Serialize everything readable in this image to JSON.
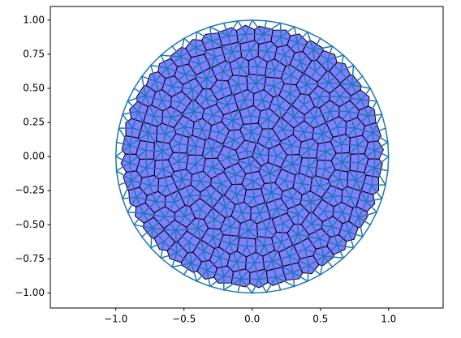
{
  "chart_data": {
    "type": "voronoi-delaunay",
    "xlim": [
      -1.48,
      1.4
    ],
    "ylim": [
      -1.11,
      1.1
    ],
    "xticks": [
      {
        "value": -1,
        "label": "−1.0"
      },
      {
        "value": -0.5,
        "label": "−0.5"
      },
      {
        "value": 0,
        "label": "0.0"
      },
      {
        "value": 0.5,
        "label": "0.5"
      },
      {
        "value": 1,
        "label": "1.0"
      }
    ],
    "yticks": [
      {
        "value": -1,
        "label": "−1.00"
      },
      {
        "value": -0.75,
        "label": "−0.75"
      },
      {
        "value": -0.5,
        "label": "−0.50"
      },
      {
        "value": -0.25,
        "label": "−0.25"
      },
      {
        "value": 0,
        "label": "0.00"
      },
      {
        "value": 0.25,
        "label": "0.25"
      },
      {
        "value": 0.5,
        "label": "0.50"
      },
      {
        "value": 0.75,
        "label": "0.75"
      },
      {
        "value": 1,
        "label": "1.00"
      }
    ],
    "rings": [
      {
        "radius": 1,
        "count": 60,
        "phase": 0,
        "cell": false
      },
      {
        "radius": 0.9,
        "count": 44,
        "phase": 0.031,
        "cell": true
      },
      {
        "radius": 0.78,
        "count": 38,
        "phase": 0.017,
        "cell": true
      },
      {
        "radius": 0.66,
        "count": 32,
        "phase": 0.053,
        "cell": true
      },
      {
        "radius": 0.54,
        "count": 26,
        "phase": 0.011,
        "cell": true
      },
      {
        "radius": 0.42,
        "count": 20,
        "phase": 0.071,
        "cell": true
      },
      {
        "radius": 0.3,
        "count": 14,
        "phase": 0.043,
        "cell": true
      },
      {
        "radius": 0.18,
        "count": 8,
        "phase": 0.13,
        "cell": true
      },
      {
        "radius": 0.06,
        "count": 3,
        "phase": 0.37,
        "cell": true
      }
    ],
    "triangulation_color": "#1f77b4",
    "cell_color": "#0000ff",
    "cell_alpha": 0.5,
    "edge_color": "#000000"
  }
}
